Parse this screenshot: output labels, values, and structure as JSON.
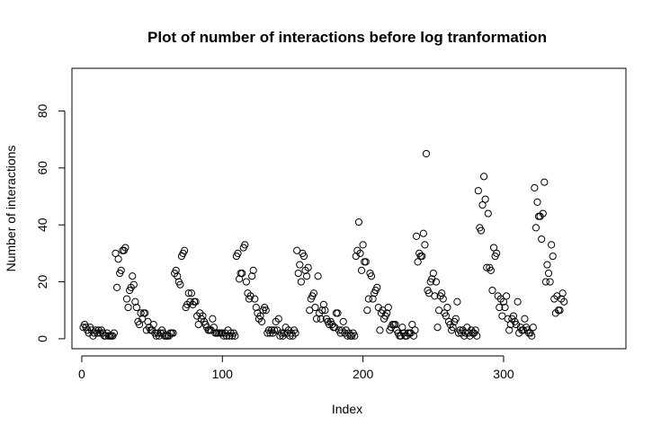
{
  "chart_data": {
    "type": "scatter",
    "title": "Plot of number of interactions before log tranformation",
    "xlabel": "Index",
    "ylabel": "Number of interactions",
    "xlim": [
      -7,
      387
    ],
    "ylim": [
      -3.5,
      95
    ],
    "x_ticks": [
      0,
      100,
      200,
      300
    ],
    "y_ticks": [
      0,
      20,
      40,
      60,
      80
    ],
    "grid": false,
    "y": [
      4,
      5,
      4,
      3,
      2,
      4,
      3,
      1,
      2,
      3,
      2,
      3,
      2,
      3,
      2,
      1,
      1,
      2,
      1,
      1,
      1,
      1,
      2,
      30,
      18,
      28,
      23,
      24,
      31,
      31,
      32,
      14,
      11,
      17,
      18,
      22,
      19,
      13,
      11,
      6,
      5,
      9,
      7,
      9,
      9,
      3,
      6,
      4,
      3,
      3,
      5,
      2,
      1,
      2,
      1,
      2,
      3,
      2,
      1,
      1,
      1,
      1,
      2,
      2,
      2,
      23,
      24,
      22,
      20,
      19,
      29,
      30,
      31,
      11,
      12,
      16,
      13,
      16,
      12,
      13,
      13,
      8,
      5,
      9,
      7,
      8,
      6,
      5,
      4,
      3,
      3,
      3,
      7,
      4,
      2,
      2,
      2,
      2,
      2,
      2,
      1,
      2,
      1,
      3,
      1,
      2,
      1,
      2,
      1,
      29,
      30,
      21,
      23,
      23,
      32,
      33,
      20,
      16,
      14,
      15,
      22,
      24,
      14,
      11,
      9,
      7,
      8,
      6,
      10,
      11,
      10,
      2,
      3,
      2,
      3,
      2,
      3,
      6,
      3,
      7,
      1,
      2,
      1,
      2,
      4,
      2,
      3,
      1,
      2,
      1,
      3,
      2,
      31,
      23,
      26,
      20,
      30,
      29,
      24,
      22,
      25,
      10,
      14,
      15,
      16,
      11,
      7,
      22,
      9,
      7,
      10,
      12,
      10,
      7,
      6,
      5,
      6,
      5,
      4,
      4,
      9,
      9,
      3,
      2,
      3,
      6,
      2,
      3,
      1,
      2,
      1,
      1,
      2,
      1,
      29,
      31,
      41,
      30,
      24,
      33,
      27,
      27,
      10,
      14,
      23,
      22,
      14,
      16,
      17,
      18,
      11,
      3,
      9,
      10,
      7,
      8,
      9,
      11,
      3,
      4,
      5,
      5,
      5,
      3,
      2,
      1,
      1,
      4,
      2,
      1,
      1,
      2,
      2,
      2,
      5,
      1,
      3,
      36,
      27,
      30,
      29,
      29,
      37,
      33,
      65,
      17,
      16,
      20,
      21,
      23,
      15,
      20,
      4,
      10,
      15,
      16,
      14,
      9,
      8,
      11,
      6,
      5,
      3,
      4,
      6,
      7,
      13,
      2,
      3,
      2,
      3,
      1,
      2,
      4,
      2,
      1,
      3,
      2,
      2,
      3,
      1,
      52,
      39,
      38,
      47,
      57,
      49,
      25,
      44,
      25,
      24,
      17,
      32,
      29,
      30,
      15,
      11,
      14,
      8,
      13,
      11,
      15,
      7,
      3,
      5,
      7,
      8,
      6,
      5,
      13,
      2,
      4,
      3,
      3,
      7,
      4,
      3,
      2,
      2,
      1,
      4,
      53,
      39,
      48,
      43,
      43,
      35,
      44,
      55,
      20,
      26,
      23,
      20,
      33,
      29,
      14,
      9,
      15,
      10,
      10,
      14,
      16,
      13
    ]
  }
}
